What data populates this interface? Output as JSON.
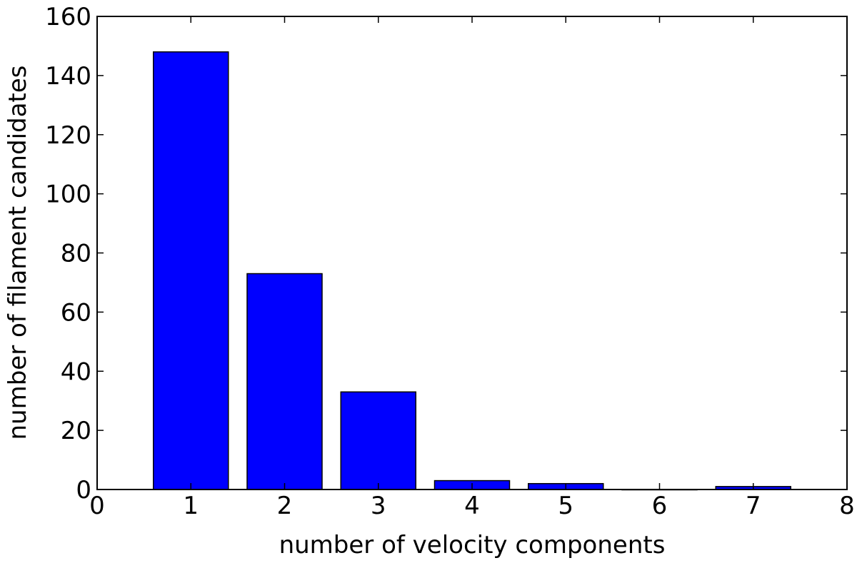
{
  "chart_data": {
    "type": "bar",
    "title": "",
    "xlabel": "number of velocity components",
    "ylabel": "number of filament candidates",
    "categories": [
      "1",
      "2",
      "3",
      "4",
      "5",
      "6",
      "7"
    ],
    "x": [
      1,
      2,
      3,
      4,
      5,
      6,
      7
    ],
    "values": [
      148,
      73,
      33,
      3,
      2,
      0,
      1
    ],
    "bar_width": 0.8,
    "xlim": [
      0,
      8
    ],
    "ylim": [
      0,
      160
    ],
    "xticks": [
      0,
      1,
      2,
      3,
      4,
      5,
      6,
      7,
      8
    ],
    "yticks": [
      0,
      20,
      40,
      60,
      80,
      100,
      120,
      140,
      160
    ],
    "bar_color": "#0000ff",
    "edge_color": "#000000",
    "grid": false,
    "legend": "none"
  }
}
